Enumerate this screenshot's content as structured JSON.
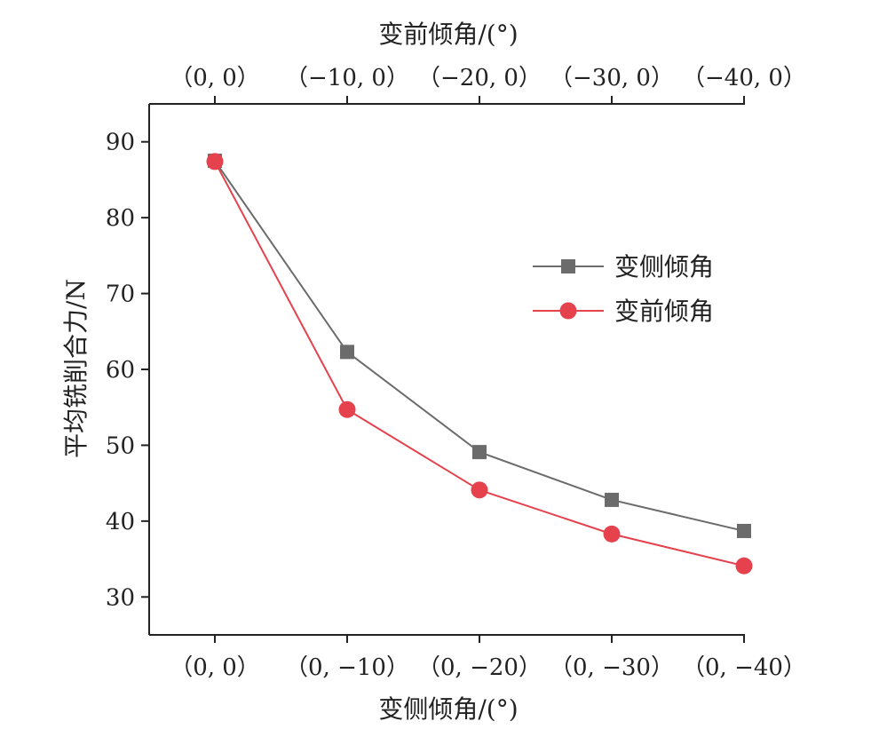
{
  "chart_data": {
    "type": "line",
    "top_axis_title": "变前倾角/(°)",
    "top_tick_labels": [
      "（0, 0）",
      "（−10, 0）",
      "（−20, 0）",
      "（−30, 0）",
      "（−40, 0）"
    ],
    "xlabel": "变侧倾角/(°)",
    "categories": [
      "（0, 0）",
      "（0, −10）",
      "（0, −20）",
      "（0, −30）",
      "（0, −40）"
    ],
    "ylabel": "平均铣削合力/N",
    "ylim": [
      25,
      95
    ],
    "yticks": [
      30,
      40,
      50,
      60,
      70,
      80,
      90
    ],
    "grid": false,
    "legend_position": "right-middle",
    "series": [
      {
        "name": "变侧倾角",
        "marker": "square",
        "color": "#6b6b6b",
        "values": [
          87.5,
          62.3,
          49.1,
          42.8,
          38.7
        ]
      },
      {
        "name": "变前倾角",
        "marker": "circle",
        "color": "#e5424d",
        "values": [
          87.4,
          54.7,
          44.1,
          38.3,
          34.1
        ]
      }
    ]
  }
}
